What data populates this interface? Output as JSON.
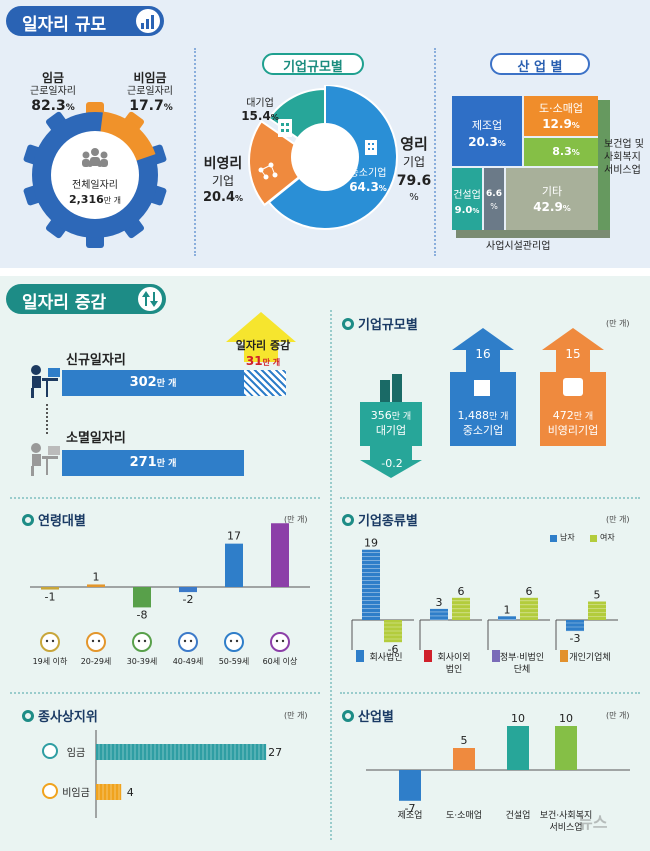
{
  "scale": {
    "header": "일자리 규모",
    "wage": {
      "label": "임금",
      "sub": "근로일자리",
      "value": "82.3",
      "pct": "%"
    },
    "nonwage": {
      "label": "비임금",
      "sub": "근로일자리",
      "value": "17.7",
      "pct": "%"
    },
    "total": {
      "label": "전체일자리",
      "value": "2,316",
      "unit": "만 개"
    },
    "size": {
      "title": "기업규모별",
      "large": {
        "label": "대기업",
        "value": "15.4",
        "pct": "%"
      },
      "nonprofit": {
        "label1": "비영리",
        "label2": "기업",
        "value": "20.4",
        "pct": "%"
      },
      "sme": {
        "label": "중소기업",
        "value": "64.3",
        "pct": "%"
      },
      "profit": {
        "label1": "영리",
        "label2": "기업",
        "value": "79.6",
        "pct": "%"
      }
    },
    "industry": {
      "title": "산 업 별",
      "manufacturing": {
        "label": "제조업",
        "value": "20.3",
        "pct": "%"
      },
      "retail": {
        "label": "도·소매업",
        "value": "12.9",
        "pct": "%"
      },
      "health": {
        "value": "8.3",
        "pct": "%",
        "label": [
          "보건업 및",
          "사회복지",
          "서비스업"
        ]
      },
      "construction": {
        "label": "건설업",
        "value": "9.0",
        "pct": "%"
      },
      "facility": {
        "value": "6.6",
        "pct": "%",
        "label": "사업시설관리업"
      },
      "other": {
        "label": "기타",
        "value": "42.9",
        "pct": "%"
      }
    }
  },
  "change": {
    "header": "일자리 증감",
    "increase": {
      "label": "일자리 증감",
      "value": "31",
      "unit": "만 개"
    },
    "new": {
      "label": "신규일자리",
      "value": "302",
      "unit": "만 개"
    },
    "lost": {
      "label": "소멸일자리",
      "value": "271",
      "unit": "만 개"
    },
    "size": {
      "title": "기업규모별",
      "unit": "(만 개)",
      "large": {
        "value": "356",
        "unit": "만 개",
        "label": "대기업",
        "delta": "-0.2"
      },
      "sme": {
        "value": "1,488",
        "unit": "만 개",
        "label": "중소기업",
        "delta": "16"
      },
      "nonprofit": {
        "value": "472",
        "unit": "만 개",
        "label": "비영리기업",
        "delta": "15"
      }
    }
  },
  "age": {
    "title": "연령대별",
    "unit": "(만 개)"
  },
  "orgtype": {
    "title": "기업종류별",
    "unit": "(만 개)",
    "legend": [
      "남자",
      "여자"
    ]
  },
  "status": {
    "title": "종사상지위",
    "unit": "(만 개)"
  },
  "sector": {
    "title": "산업별",
    "unit": "(만 개)"
  },
  "watermark": "뉴스",
  "chart_data": [
    {
      "type": "bar",
      "title": "연령대별",
      "categories": [
        "19세 이하",
        "20-29세",
        "30-39세",
        "40-49세",
        "50-59세",
        "60세 이상"
      ],
      "values": [
        -1,
        1,
        -8,
        -2,
        17,
        25
      ],
      "colors": [
        "#c8a63a",
        "#e3962c",
        "#58a04a",
        "#3c7ac9",
        "#2f7ec9",
        "#8c3fa8"
      ]
    },
    {
      "type": "bar",
      "title": "기업종류별",
      "categories": [
        "회사법인",
        "회사이외 법인",
        "정부·비법인 단체",
        "개인기업체"
      ],
      "series": [
        {
          "name": "남자",
          "values": [
            19,
            3,
            1,
            -3
          ]
        },
        {
          "name": "여자",
          "values": [
            -6,
            6,
            6,
            5
          ]
        }
      ]
    },
    {
      "type": "bar",
      "title": "종사상지위",
      "categories": [
        "임금",
        "비임금"
      ],
      "values": [
        27,
        4
      ]
    },
    {
      "type": "bar",
      "title": "산업별",
      "categories": [
        "제조업",
        "도·소매업",
        "건설업",
        "보건·사회복지 서비스업"
      ],
      "values": [
        -7,
        5,
        10,
        10
      ]
    }
  ]
}
